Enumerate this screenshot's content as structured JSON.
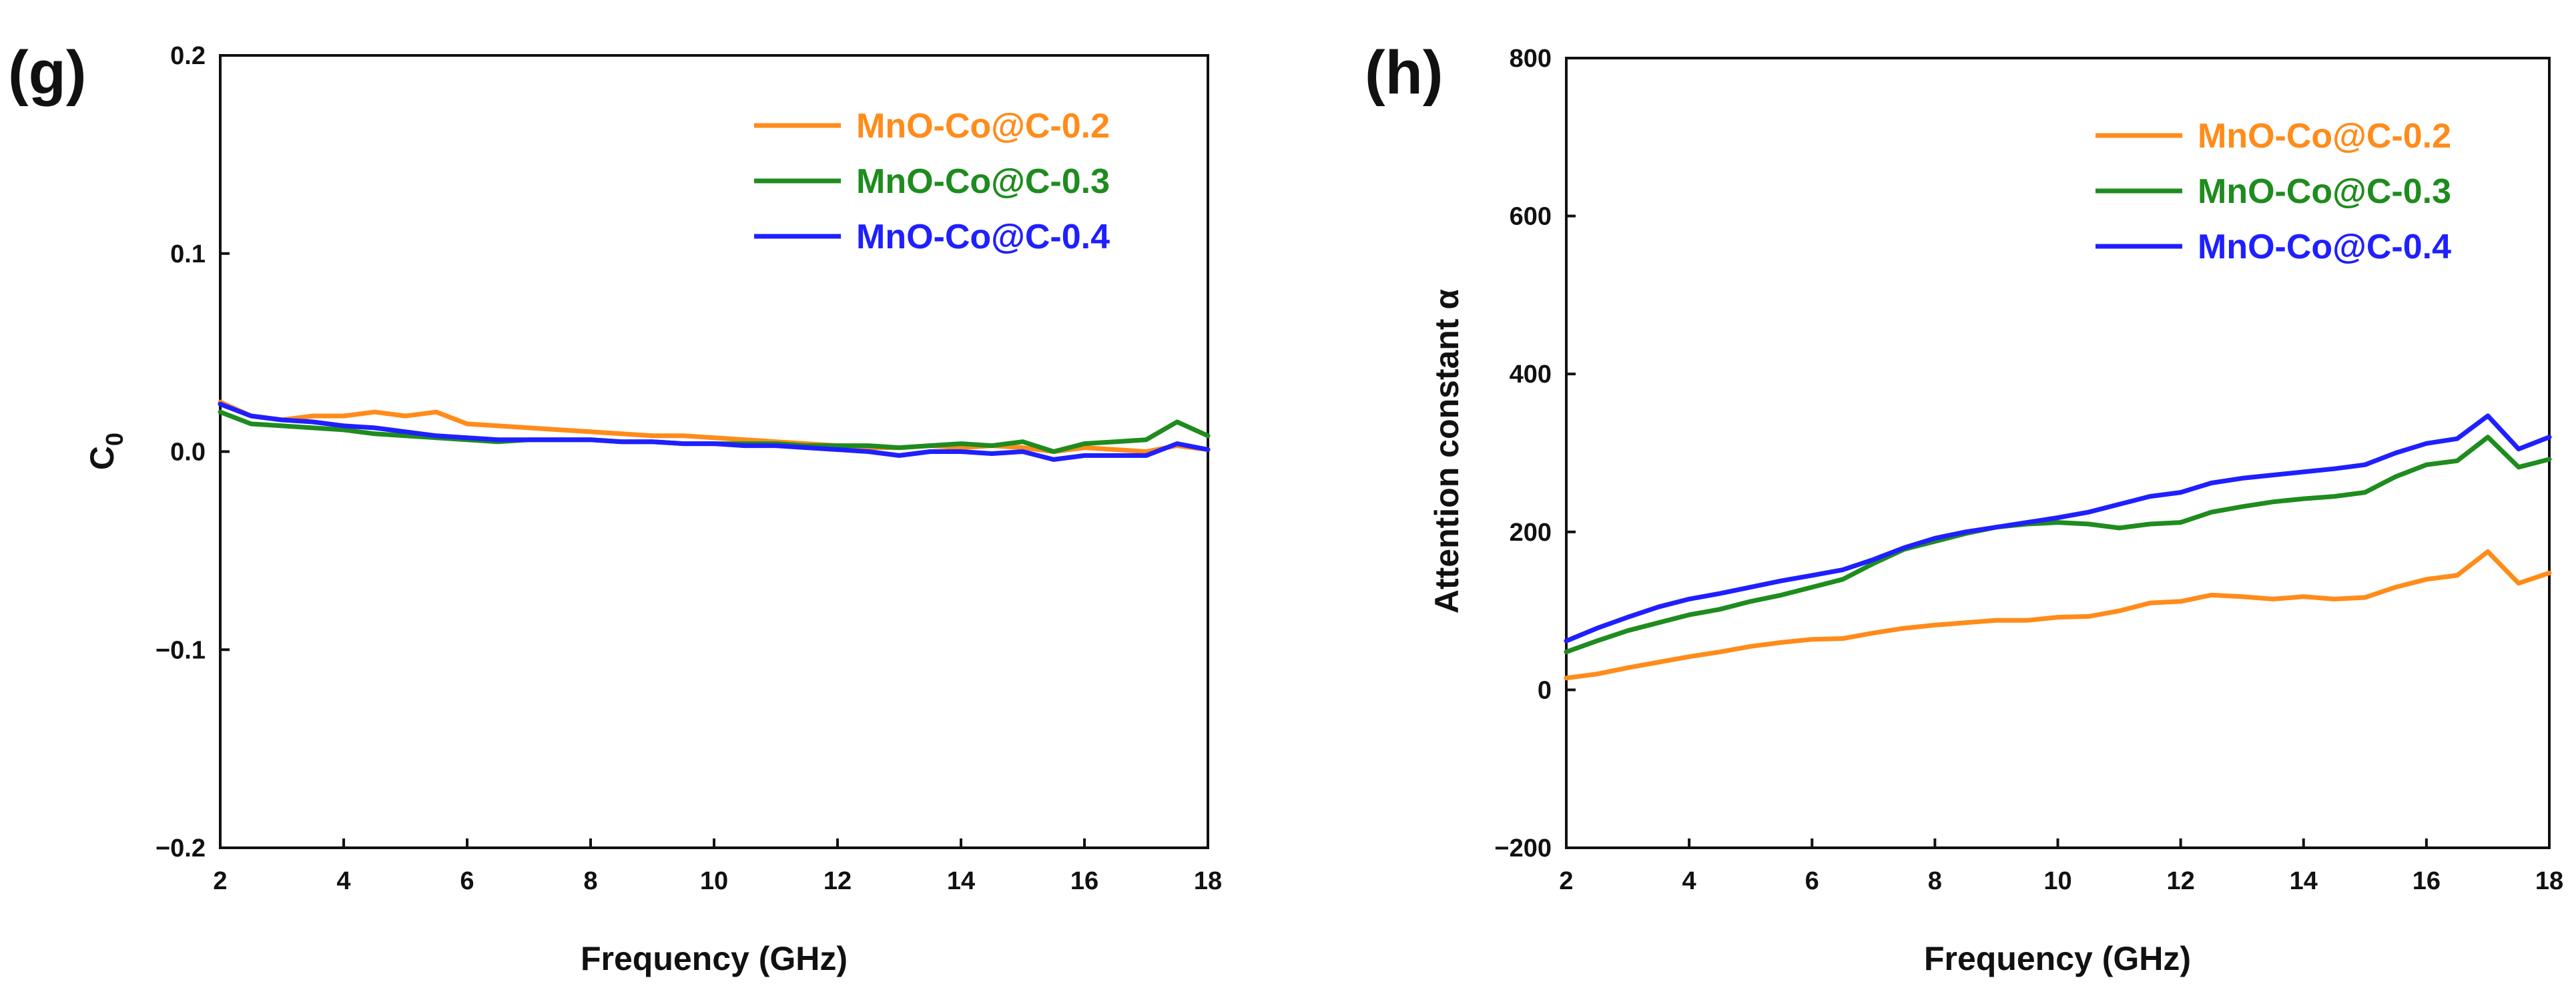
{
  "chart_data": [
    {
      "panel_label": "(g)",
      "type": "line",
      "title": "",
      "xlabel": "Frequency (GHz)",
      "ylabel": "C",
      "ylabel_sub": "0",
      "xlim": [
        2,
        18
      ],
      "ylim": [
        -0.2,
        0.2
      ],
      "xticks": [
        "2",
        "4",
        "6",
        "8",
        "10",
        "12",
        "14",
        "16",
        "18"
      ],
      "yticks": [
        "−0.2",
        "−0.1",
        "0.0",
        "0.1",
        "0.2"
      ],
      "x": [
        2,
        2.5,
        3,
        3.5,
        4,
        4.5,
        5,
        5.5,
        6,
        6.5,
        7,
        7.5,
        8,
        8.5,
        9,
        9.5,
        10,
        10.5,
        11,
        11.5,
        12,
        12.5,
        13,
        13.5,
        14,
        14.5,
        15,
        15.5,
        16,
        16.5,
        17,
        17.5,
        18
      ],
      "legend_position": "top-right",
      "series": [
        {
          "name": "MnO-Co@C-0.2",
          "color": "#ff8c1a",
          "values": [
            0.025,
            0.018,
            0.016,
            0.018,
            0.018,
            0.02,
            0.018,
            0.02,
            0.014,
            0.013,
            0.012,
            0.011,
            0.01,
            0.009,
            0.008,
            0.008,
            0.007,
            0.006,
            0.005,
            0.004,
            0.003,
            0.002,
            0.002,
            0.003,
            0.002,
            0.003,
            0.002,
            0.0,
            0.002,
            0.001,
            0.0,
            0.003,
            0.001
          ]
        },
        {
          "name": "MnO-Co@C-0.3",
          "color": "#1e8c1e",
          "values": [
            0.02,
            0.014,
            0.013,
            0.012,
            0.011,
            0.009,
            0.008,
            0.007,
            0.006,
            0.005,
            0.006,
            0.006,
            0.006,
            0.005,
            0.005,
            0.004,
            0.004,
            0.004,
            0.004,
            0.003,
            0.003,
            0.003,
            0.002,
            0.003,
            0.004,
            0.003,
            0.005,
            0.0,
            0.004,
            0.005,
            0.006,
            0.015,
            0.008
          ]
        },
        {
          "name": "MnO-Co@C-0.4",
          "color": "#1f1fff",
          "values": [
            0.024,
            0.018,
            0.016,
            0.015,
            0.013,
            0.012,
            0.01,
            0.008,
            0.007,
            0.006,
            0.006,
            0.006,
            0.006,
            0.005,
            0.005,
            0.004,
            0.004,
            0.003,
            0.003,
            0.002,
            0.001,
            0.0,
            -0.002,
            0.0,
            0.0,
            -0.001,
            0.0,
            -0.004,
            -0.002,
            -0.002,
            -0.002,
            0.004,
            0.001
          ]
        }
      ]
    },
    {
      "panel_label": "(h)",
      "type": "line",
      "title": "",
      "xlabel": "Frequency (GHz)",
      "ylabel": "Attention constant α",
      "xlim": [
        2,
        18
      ],
      "ylim": [
        -200,
        800
      ],
      "xticks": [
        "2",
        "4",
        "6",
        "8",
        "10",
        "12",
        "14",
        "16",
        "18"
      ],
      "yticks": [
        "−200",
        "0",
        "200",
        "400",
        "600",
        "800"
      ],
      "x": [
        2,
        2.5,
        3,
        3.5,
        4,
        4.5,
        5,
        5.5,
        6,
        6.5,
        7,
        7.5,
        8,
        8.5,
        9,
        9.5,
        10,
        10.5,
        11,
        11.5,
        12,
        12.5,
        13,
        13.5,
        14,
        14.5,
        15,
        15.5,
        16,
        16.5,
        17,
        17.5,
        18
      ],
      "legend_position": "top-right",
      "series": [
        {
          "name": "MnO-Co@C-0.2",
          "color": "#ff8c1a",
          "values": [
            15,
            20,
            28,
            35,
            42,
            48,
            55,
            60,
            64,
            65,
            72,
            78,
            82,
            85,
            88,
            88,
            92,
            93,
            100,
            110,
            112,
            120,
            118,
            115,
            118,
            115,
            117,
            130,
            140,
            145,
            175,
            135,
            148
          ]
        },
        {
          "name": "MnO-Co@C-0.3",
          "color": "#1e8c1e",
          "values": [
            48,
            62,
            75,
            85,
            95,
            102,
            112,
            120,
            130,
            140,
            160,
            178,
            188,
            198,
            206,
            210,
            212,
            210,
            205,
            210,
            212,
            225,
            232,
            238,
            242,
            245,
            250,
            270,
            285,
            290,
            320,
            282,
            292
          ]
        },
        {
          "name": "MnO-Co@C-0.4",
          "color": "#1f1fff",
          "values": [
            62,
            78,
            92,
            105,
            115,
            122,
            130,
            138,
            145,
            152,
            165,
            180,
            192,
            200,
            206,
            212,
            218,
            225,
            235,
            245,
            250,
            262,
            268,
            272,
            276,
            280,
            285,
            300,
            312,
            318,
            347,
            305,
            320
          ]
        }
      ]
    }
  ]
}
